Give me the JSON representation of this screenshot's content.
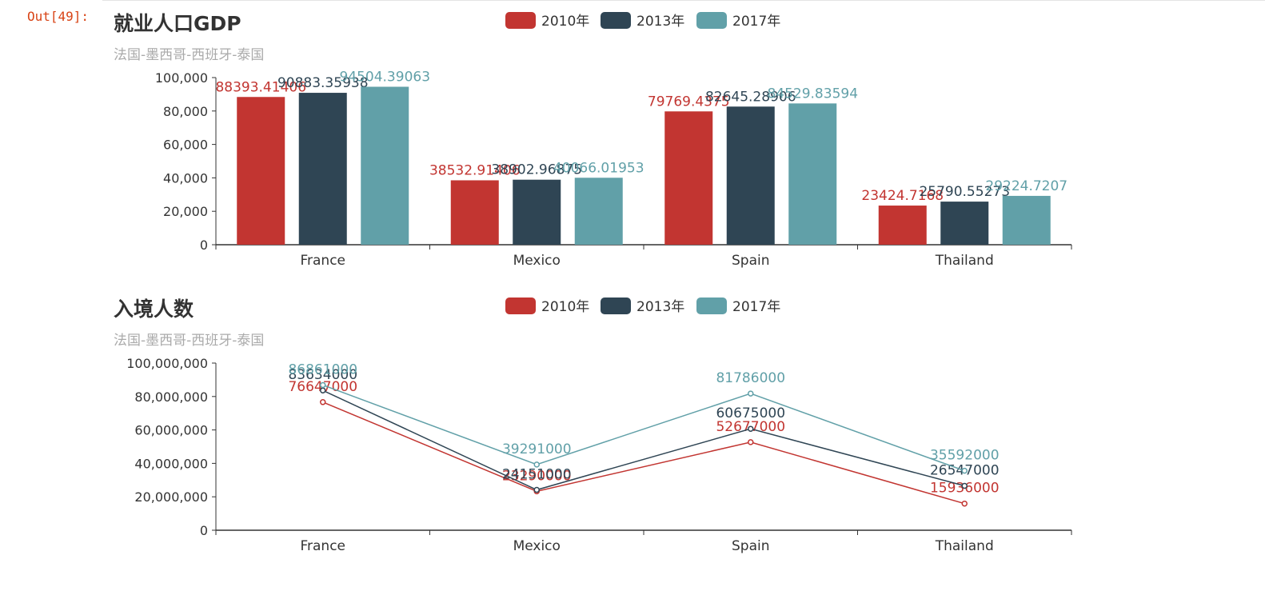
{
  "cell_prompt": "Out[49]:",
  "chart_data": [
    {
      "type": "bar",
      "title": "就业人口GDP",
      "subtitle": "法国-墨西哥-西班牙-泰国",
      "categories": [
        "France",
        "Mexico",
        "Spain",
        "Thailand"
      ],
      "series": [
        {
          "name": "2010年",
          "color": "#c23531",
          "values": [
            88393.41406,
            38532.91406,
            79769.4375,
            23424.7168
          ],
          "labels": [
            "88393.41406",
            "38532.91406",
            "79769.4375",
            "23424.7168"
          ]
        },
        {
          "name": "2013年",
          "color": "#2f4554",
          "values": [
            90883.35938,
            38902.96875,
            82645.28906,
            25790.55273
          ],
          "labels": [
            "90883.35938",
            "38902.96875",
            "82645.28906",
            "25790.55273"
          ]
        },
        {
          "name": "2017年",
          "color": "#61a0a8",
          "values": [
            94504.39063,
            40066.01953,
            84529.83594,
            29224.7207
          ],
          "labels": [
            "94504.39063",
            "40066.01953",
            "84529.83594",
            "29224.7207"
          ]
        }
      ],
      "y_ticks": [
        "0",
        "20,000",
        "40,000",
        "60,000",
        "80,000",
        "100,000"
      ],
      "ylim": [
        0,
        100000
      ],
      "legend_position": "top-center"
    },
    {
      "type": "line",
      "title": "入境人数",
      "subtitle": "法国-墨西哥-西班牙-泰国",
      "categories": [
        "France",
        "Mexico",
        "Spain",
        "Thailand"
      ],
      "series": [
        {
          "name": "2010年",
          "color": "#c23531",
          "values": [
            76647000,
            23290000,
            52677000,
            15936000
          ],
          "labels": [
            "76647000",
            "23290000",
            "52677000",
            "15936000"
          ]
        },
        {
          "name": "2013年",
          "color": "#2f4554",
          "values": [
            83634000,
            24151000,
            60675000,
            26547000
          ],
          "labels": [
            "83634000",
            "24151000",
            "60675000",
            "26547000"
          ]
        },
        {
          "name": "2017年",
          "color": "#61a0a8",
          "values": [
            86861000,
            39291000,
            81786000,
            35592000
          ],
          "labels": [
            "86861000",
            "39291000",
            "81786000",
            "35592000"
          ]
        }
      ],
      "y_ticks": [
        "0",
        "20,000,000",
        "40,000,000",
        "60,000,000",
        "80,000,000",
        "100,000,000"
      ],
      "ylim": [
        0,
        100000000
      ],
      "legend_position": "top-center"
    }
  ]
}
